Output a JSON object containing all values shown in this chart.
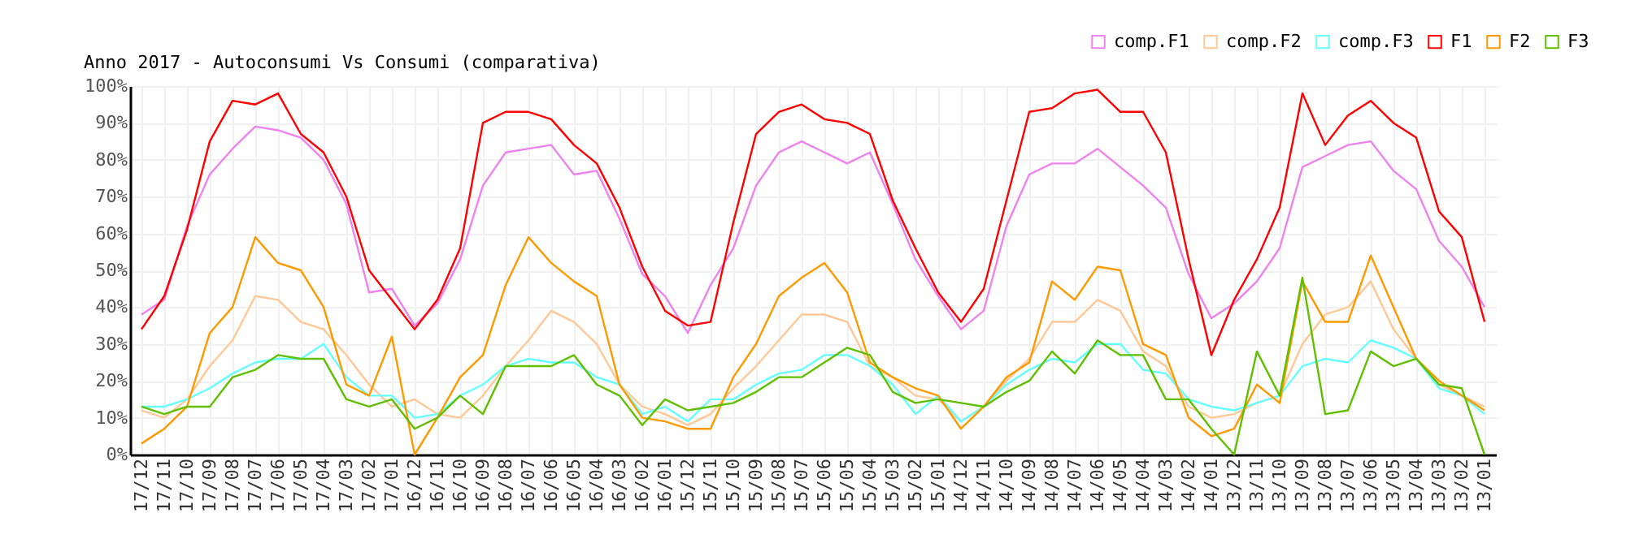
{
  "chart_data": {
    "type": "line",
    "title": "Anno 2017 - Autoconsumi Vs Consumi (comparativa)",
    "categories": [
      "17/12",
      "17/11",
      "17/10",
      "17/09",
      "17/08",
      "17/07",
      "17/06",
      "17/05",
      "17/04",
      "17/03",
      "17/02",
      "17/01",
      "16/12",
      "16/11",
      "16/10",
      "16/09",
      "16/08",
      "16/07",
      "16/06",
      "16/05",
      "16/04",
      "16/03",
      "16/02",
      "16/01",
      "15/12",
      "15/11",
      "15/10",
      "15/09",
      "15/08",
      "15/07",
      "15/06",
      "15/05",
      "15/04",
      "15/03",
      "15/02",
      "15/01",
      "14/12",
      "14/11",
      "14/10",
      "14/09",
      "14/08",
      "14/07",
      "14/06",
      "14/05",
      "14/04",
      "14/03",
      "14/02",
      "14/01",
      "13/12",
      "13/11",
      "13/10",
      "13/09",
      "13/08",
      "13/07",
      "13/06",
      "13/05",
      "13/04",
      "13/03",
      "13/02",
      "13/01"
    ],
    "series": [
      {
        "name": "comp.F1",
        "color": "#ee82ee",
        "values": [
          38,
          42,
          62,
          76,
          83,
          89,
          88,
          86,
          80,
          68,
          44,
          45,
          35,
          41,
          53,
          73,
          82,
          83,
          84,
          76,
          77,
          64,
          49,
          43,
          33,
          46,
          56,
          73,
          82,
          85,
          82,
          79,
          82,
          68,
          53,
          43,
          34,
          39,
          62,
          76,
          79,
          79,
          83,
          78,
          73,
          67,
          49,
          37,
          41,
          47,
          56,
          78,
          81,
          84,
          85,
          77,
          72,
          58,
          51,
          40
        ]
      },
      {
        "name": "comp.F2",
        "color": "#ffc896",
        "values": [
          12,
          10,
          15,
          24,
          31,
          43,
          42,
          36,
          34,
          27,
          19,
          13,
          15,
          11,
          10,
          16,
          24,
          31,
          39,
          36,
          30,
          19,
          13,
          11,
          8,
          11,
          18,
          24,
          31,
          38,
          38,
          36,
          24,
          21,
          16,
          15,
          9,
          13,
          20,
          26,
          36,
          36,
          42,
          39,
          28,
          24,
          13,
          10,
          11,
          14,
          16,
          30,
          38,
          40,
          47,
          34,
          26,
          19,
          16,
          13
        ]
      },
      {
        "name": "comp.F3",
        "color": "#66ffff",
        "values": [
          13,
          13,
          15,
          18,
          22,
          25,
          26,
          26,
          30,
          21,
          16,
          16,
          10,
          11,
          16,
          19,
          24,
          26,
          25,
          25,
          21,
          19,
          11,
          13,
          9,
          15,
          15,
          19,
          22,
          23,
          27,
          27,
          24,
          19,
          11,
          16,
          9,
          13,
          19,
          23,
          26,
          25,
          30,
          30,
          23,
          22,
          15,
          13,
          12,
          14,
          16,
          24,
          26,
          25,
          31,
          29,
          26,
          18,
          16,
          11
        ]
      },
      {
        "name": "F1",
        "color": "#ff0000",
        "values": [
          34,
          43,
          61,
          85,
          96,
          95,
          98,
          87,
          82,
          70,
          50,
          42,
          34,
          42,
          56,
          90,
          93,
          93,
          91,
          84,
          79,
          67,
          51,
          39,
          35,
          36,
          63,
          87,
          93,
          95,
          91,
          90,
          87,
          69,
          56,
          44,
          36,
          45,
          69,
          93,
          94,
          98,
          99,
          93,
          93,
          82,
          53,
          27,
          42,
          53,
          67,
          98,
          84,
          92,
          96,
          90,
          86,
          66,
          59,
          36
        ]
      },
      {
        "name": "F2",
        "color": "#ff9900",
        "values": [
          3,
          7,
          13,
          33,
          40,
          59,
          52,
          50,
          40,
          19,
          16,
          32,
          0,
          10,
          21,
          27,
          46,
          59,
          52,
          47,
          43,
          19,
          10,
          9,
          7,
          7,
          21,
          30,
          43,
          48,
          52,
          44,
          25,
          21,
          18,
          16,
          7,
          13,
          21,
          25,
          47,
          42,
          51,
          50,
          30,
          27,
          10,
          5,
          7,
          19,
          14,
          47,
          36,
          36,
          54,
          40,
          26,
          20,
          16,
          12
        ]
      },
      {
        "name": "F3",
        "color": "#5fbf00",
        "values": [
          13,
          11,
          13,
          13,
          21,
          23,
          27,
          26,
          26,
          15,
          13,
          15,
          7,
          10,
          16,
          11,
          24,
          24,
          24,
          27,
          19,
          16,
          8,
          15,
          12,
          13,
          14,
          17,
          21,
          21,
          25,
          29,
          27,
          17,
          14,
          15,
          14,
          13,
          17,
          20,
          28,
          22,
          31,
          27,
          27,
          15,
          15,
          7,
          0,
          28,
          16,
          48,
          11,
          12,
          28,
          24,
          26,
          19,
          18,
          0
        ]
      }
    ],
    "ylim": [
      0,
      100
    ],
    "yticks": [
      {
        "value": 0,
        "label": "0%"
      },
      {
        "value": 10,
        "label": "10%"
      },
      {
        "value": 20,
        "label": "20%"
      },
      {
        "value": 30,
        "label": "30%"
      },
      {
        "value": 40,
        "label": "40%"
      },
      {
        "value": 50,
        "label": "50%"
      },
      {
        "value": 60,
        "label": "60%"
      },
      {
        "value": 70,
        "label": "70%"
      },
      {
        "value": 80,
        "label": "80%"
      },
      {
        "value": 90,
        "label": "90%"
      },
      {
        "value": 100,
        "label": "100%"
      }
    ],
    "grid": true,
    "legend": "top right"
  }
}
